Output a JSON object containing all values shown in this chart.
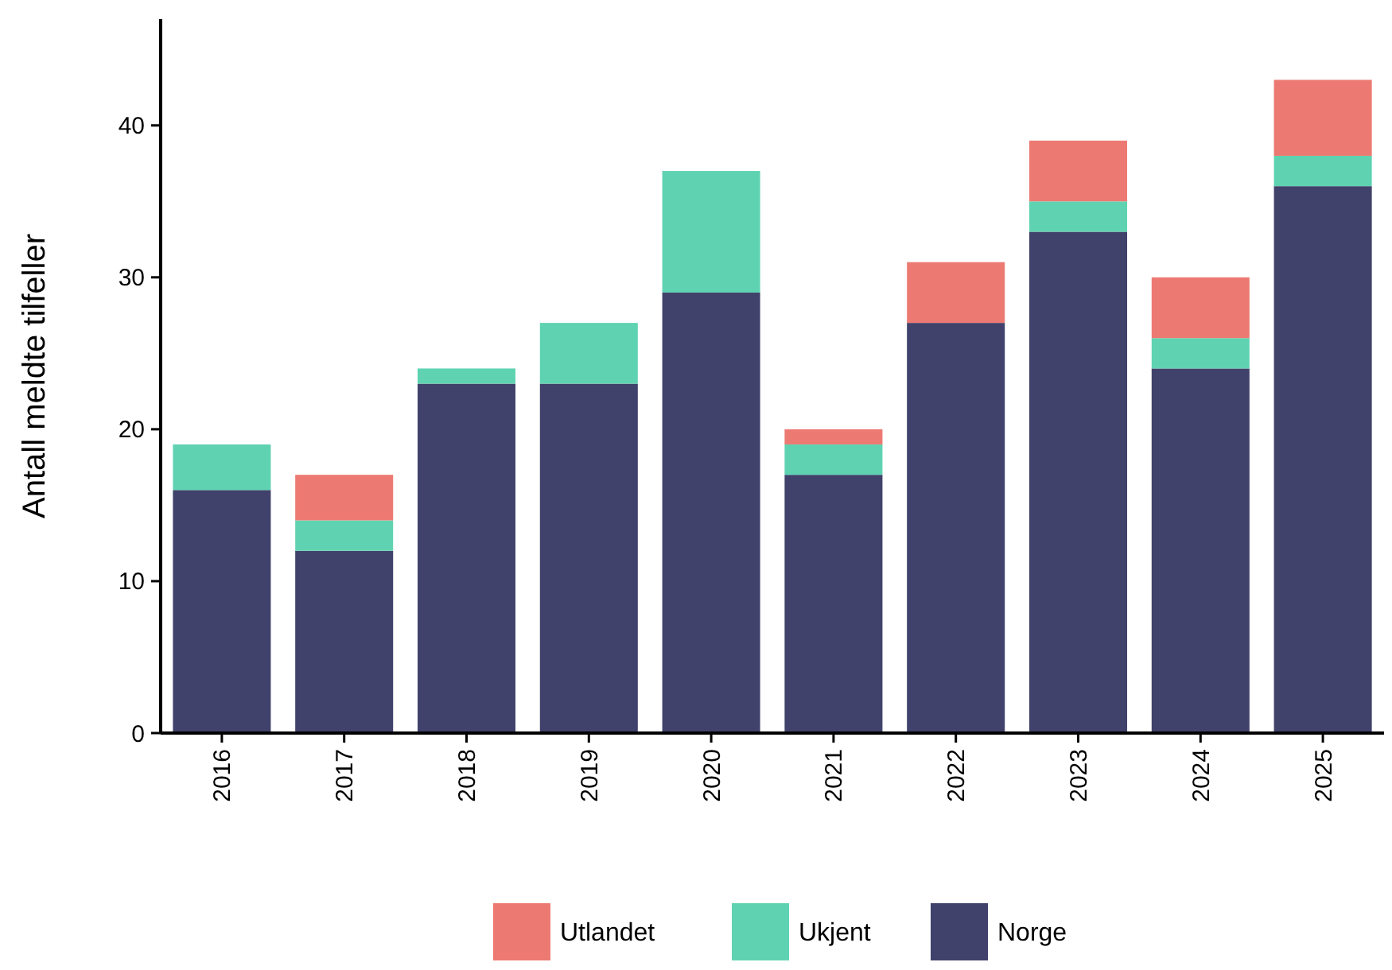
{
  "chart_data": {
    "type": "bar",
    "stacked": true,
    "ylabel": "Antall meldte tilfeller",
    "categories": [
      "2016",
      "2017",
      "2018",
      "2019",
      "2020",
      "2021",
      "2022",
      "2023",
      "2024",
      "2025"
    ],
    "series": [
      {
        "name": "Norge",
        "color": "#40426b",
        "values": [
          16,
          12,
          23,
          23,
          29,
          17,
          27,
          33,
          24,
          36
        ]
      },
      {
        "name": "Ukjent",
        "color": "#5fd3b1",
        "values": [
          3,
          2,
          1,
          4,
          8,
          2,
          0,
          2,
          2,
          2
        ]
      },
      {
        "name": "Utlandet",
        "color": "#ec7a73",
        "values": [
          0,
          3,
          0,
          0,
          0,
          1,
          4,
          4,
          4,
          5
        ]
      }
    ],
    "ylim": [
      0,
      47
    ],
    "yticks": [
      0,
      10,
      20,
      30,
      40
    ],
    "grid": false,
    "legend": "bottom"
  }
}
